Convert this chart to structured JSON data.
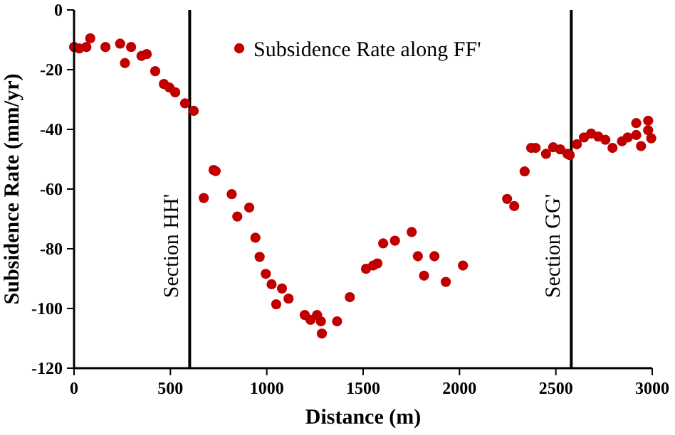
{
  "chart_data": {
    "type": "scatter",
    "xlabel": "Distance (m)",
    "ylabel": "Subsidence Rate (mm/yr)",
    "xlim": [
      0,
      3000
    ],
    "ylim": [
      -120,
      0
    ],
    "xticks": [
      0,
      500,
      1000,
      1500,
      2000,
      2500,
      3000
    ],
    "yticks": [
      -120,
      -100,
      -80,
      -60,
      -40,
      -20,
      0
    ],
    "grid": false,
    "legend": "top",
    "marker": "circle",
    "series": [
      {
        "name": "Subsidence Rate along FF'",
        "color": "#c00000",
        "x": [
          0,
          27,
          64,
          84,
          163,
          239,
          264,
          296,
          350,
          377,
          421,
          466,
          495,
          525,
          576,
          621,
          673,
          724,
          735,
          818,
          847,
          909,
          941,
          963,
          995,
          1025,
          1049,
          1079,
          1113,
          1197,
          1227,
          1261,
          1281,
          1286,
          1365,
          1431,
          1515,
          1552,
          1574,
          1604,
          1665,
          1752,
          1784,
          1816,
          1870,
          1929,
          2018,
          2247,
          2284,
          2338,
          2372,
          2395,
          2449,
          2486,
          2523,
          2560,
          2572,
          2609,
          2646,
          2683,
          2720,
          2757,
          2794,
          2843,
          2873,
          2917,
          2917,
          2942,
          2979,
          2979,
          2995
        ],
        "values": [
          -12.4,
          -12.9,
          -12.4,
          -9.5,
          -12.4,
          -11.3,
          -17.8,
          -12.4,
          -15.4,
          -14.8,
          -20.5,
          -24.8,
          -26,
          -27.6,
          -31.3,
          -33.8,
          -63,
          -53.6,
          -54,
          -61.7,
          -69.2,
          -66.2,
          -76.3,
          -82.7,
          -88.4,
          -91.9,
          -98.6,
          -93.3,
          -96.7,
          -102.2,
          -103.8,
          -102.2,
          -104.3,
          -108.4,
          -104.3,
          -96.2,
          -86.7,
          -85.6,
          -84.9,
          -78.2,
          -77.3,
          -74.4,
          -82.5,
          -89,
          -82.5,
          -91.1,
          -85.6,
          -63.3,
          -65.7,
          -54.1,
          -46.2,
          -46.2,
          -48.2,
          -46,
          -46.7,
          -48.2,
          -48.6,
          -45,
          -42.7,
          -41.4,
          -42.4,
          -43.5,
          -46.2,
          -44,
          -42.7,
          -37.9,
          -41.9,
          -45.6,
          -37.1,
          -40.3,
          -43
        ]
      }
    ],
    "ref_lines": [
      {
        "axis": "x",
        "value": 600,
        "label": "Section HH'",
        "color": "#000000"
      },
      {
        "axis": "x",
        "value": 2580,
        "label": "Section GG'",
        "color": "#000000"
      }
    ]
  }
}
